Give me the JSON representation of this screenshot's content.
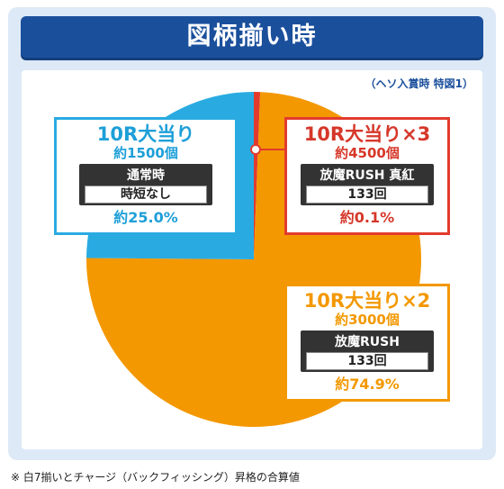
{
  "title": "図柄揃い時",
  "note_top": "（ヘソ入賞時 特図1）",
  "footnote": "※ 白7揃いとチャージ（バックフィッシング）昇格の合算値",
  "colors": {
    "blue": "#29abe2",
    "red": "#e23b2e",
    "orange": "#f39800"
  },
  "chart_data": {
    "type": "pie",
    "title": "",
    "slices": [
      {
        "label": "10R大当り×3",
        "payout": "約4500個",
        "mode": "放魔RUSH 真紅",
        "mode_detail": "133回",
        "value": 0.1,
        "value_label": "約0.1%",
        "color": "#e23b2e"
      },
      {
        "label": "10R大当り×2",
        "payout": "約3000個",
        "mode": "放魔RUSH",
        "mode_detail": "133回",
        "value": 74.9,
        "value_label": "約74.9%",
        "color": "#f39800"
      },
      {
        "label": "10R大当り",
        "payout": "約1500個",
        "mode": "通常時",
        "mode_detail": "時短なし",
        "value": 25.0,
        "value_label": "約25.0%",
        "color": "#29abe2"
      }
    ]
  }
}
